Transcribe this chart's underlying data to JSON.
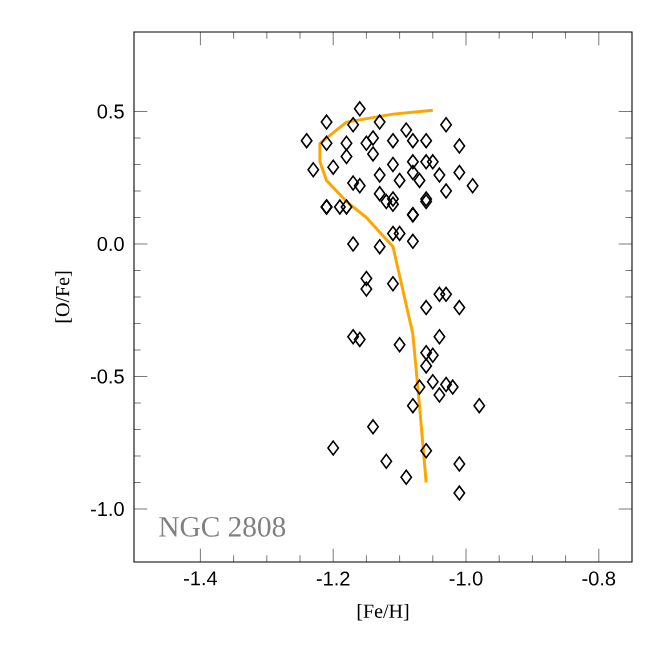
{
  "chart_data": {
    "type": "scatter",
    "xlabel": "[Fe/H]",
    "ylabel": "[O/Fe]",
    "annotations": [
      "NGC 2808"
    ],
    "xlim": [
      -1.5,
      -0.75
    ],
    "ylim": [
      -1.2,
      0.8
    ],
    "xticks": [
      -1.4,
      -1.2,
      {
        "value": -1.0,
        "label": "-1.0"
      },
      -0.8
    ],
    "yticks": [
      {
        "value": -1.0,
        "label": "-1.0"
      },
      -0.5,
      {
        "value": 0.0,
        "label": "0.0"
      },
      0.5
    ],
    "grid": false,
    "series": [
      {
        "marker": "diamond",
        "color": "#000000",
        "x": [
          -1.16,
          -1.21,
          -1.13,
          -1.17,
          -1.09,
          -1.03,
          -1.24,
          -1.21,
          -1.18,
          -1.15,
          -1.14,
          -1.11,
          -1.08,
          -1.06,
          -1.01,
          -1.23,
          -1.2,
          -1.18,
          -1.14,
          -1.11,
          -1.08,
          -1.06,
          -1.05,
          -1.08,
          -1.04,
          -1.01,
          -0.99,
          -1.16,
          -1.13,
          -1.1,
          -1.07,
          -1.13,
          -1.11,
          -1.06,
          -1.03,
          -1.21,
          -1.19,
          -1.08,
          -1.12,
          -1.17,
          -1.21,
          -1.18,
          -1.11,
          -1.08,
          -1.06,
          -1.11,
          -1.1,
          -1.08,
          -1.17,
          -1.13,
          -1.15,
          -1.15,
          -1.11,
          -1.06,
          -1.04,
          -1.03,
          -1.01,
          -1.17,
          -1.16,
          -1.1,
          -1.04,
          -1.06,
          -1.05,
          -1.06,
          -1.07,
          -1.05,
          -1.03,
          -1.02,
          -1.04,
          -1.08,
          -0.98,
          -1.2,
          -1.14,
          -1.12,
          -1.09,
          -1.06,
          -1.01,
          -1.01
        ],
        "values": [
          0.51,
          0.46,
          0.46,
          0.45,
          0.43,
          0.45,
          0.39,
          0.38,
          0.38,
          0.38,
          0.4,
          0.39,
          0.39,
          0.39,
          0.37,
          0.28,
          0.29,
          0.33,
          0.34,
          0.3,
          0.31,
          0.31,
          0.31,
          0.27,
          0.26,
          0.27,
          0.22,
          0.22,
          0.26,
          0.24,
          0.24,
          0.19,
          0.17,
          0.17,
          0.2,
          0.14,
          0.14,
          0.11,
          0.16,
          0.23,
          0.14,
          0.14,
          0.15,
          0.11,
          0.16,
          0.04,
          0.04,
          0.01,
          0.0,
          -0.01,
          -0.13,
          -0.17,
          -0.15,
          -0.24,
          -0.19,
          -0.19,
          -0.24,
          -0.35,
          -0.36,
          -0.38,
          -0.35,
          -0.41,
          -0.42,
          -0.46,
          -0.54,
          -0.52,
          -0.53,
          -0.54,
          -0.57,
          -0.61,
          -0.61,
          -0.77,
          -0.69,
          -0.82,
          -0.88,
          -0.78,
          -0.83,
          -0.94
        ]
      },
      {
        "type": "line",
        "marker": "none",
        "color": "#ffa500",
        "x": [
          -1.05,
          -1.11,
          -1.18,
          -1.22,
          -1.22,
          -1.21,
          -1.18,
          -1.15,
          -1.11,
          -1.08,
          -1.07,
          -1.06
        ],
        "values": [
          0.505,
          0.49,
          0.46,
          0.38,
          0.31,
          0.24,
          0.16,
          0.1,
          -0.01,
          -0.34,
          -0.61,
          -0.9
        ]
      }
    ]
  }
}
